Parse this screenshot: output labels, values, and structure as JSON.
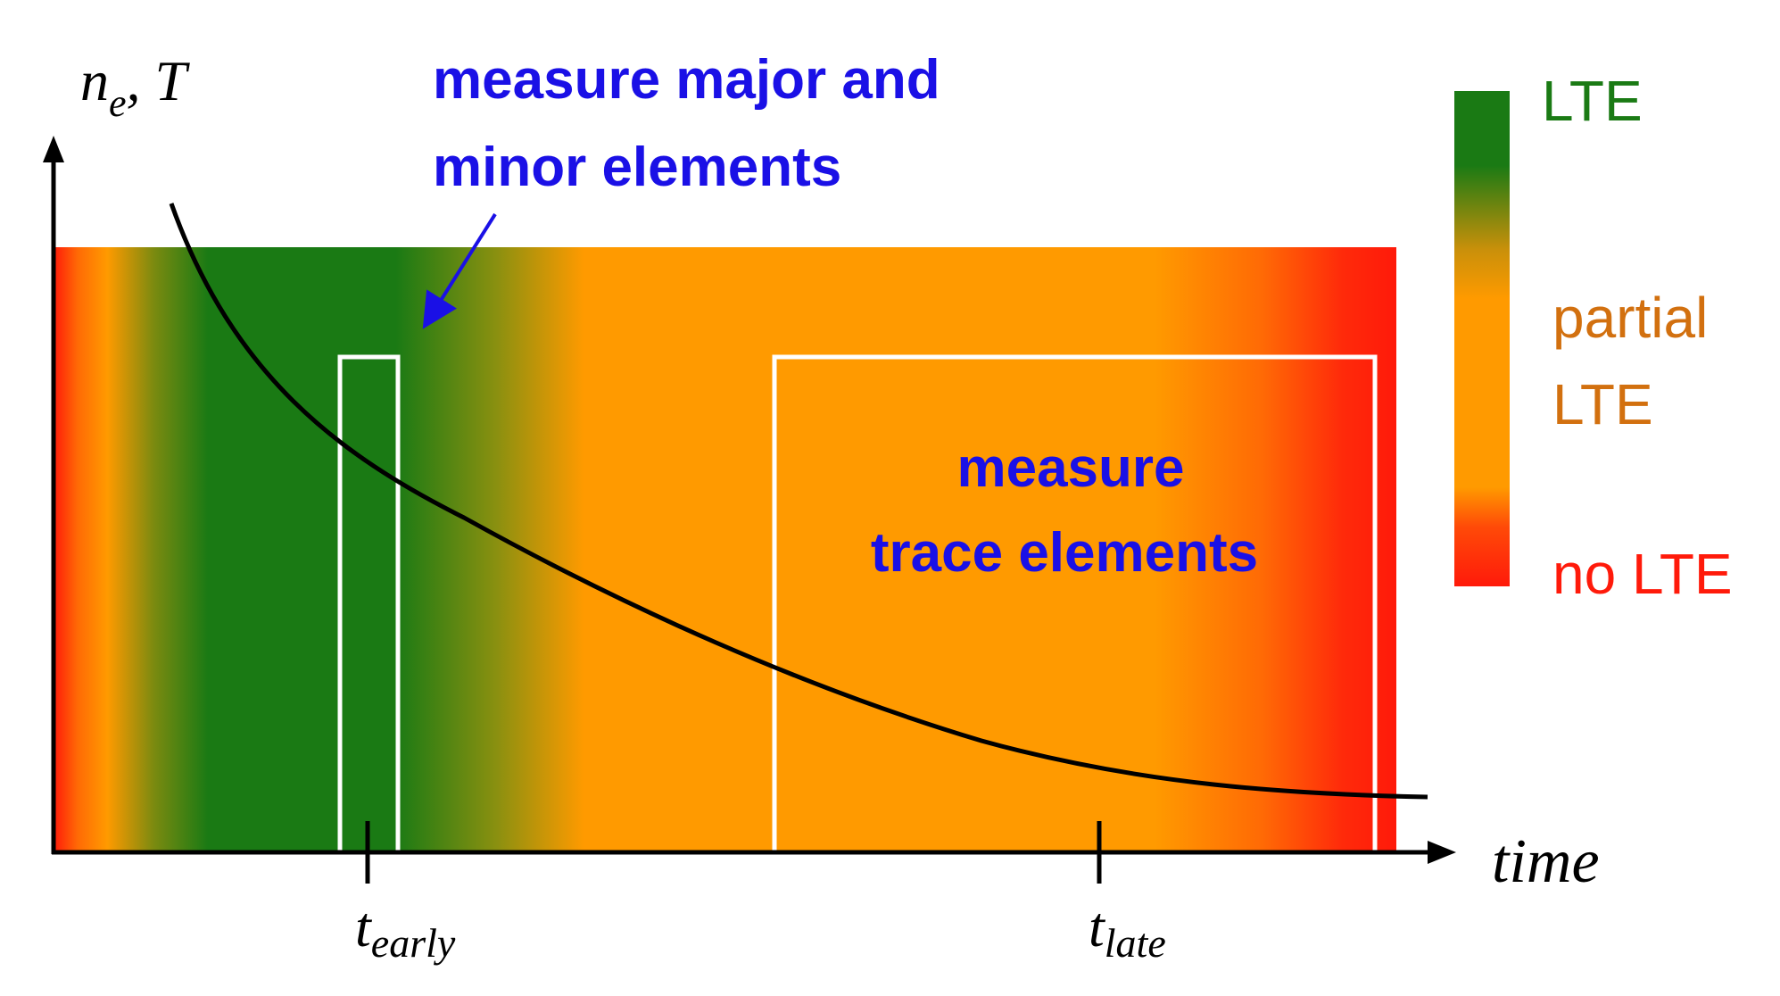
{
  "axes": {
    "y_label_main": "n",
    "y_label_sub": "e",
    "y_label_rest": ", T",
    "x_label": "time"
  },
  "ticks": [
    {
      "main": "t",
      "sub": "early"
    },
    {
      "main": "t",
      "sub": "late"
    }
  ],
  "annotations": {
    "early_line1": "measure major and",
    "early_line2": "minor elements",
    "late_line1": "measure",
    "late_line2": "trace elements"
  },
  "legend": {
    "lte": "LTE",
    "partial_line1": "partial",
    "partial_line2": "LTE",
    "no_lte": "no LTE"
  },
  "colors": {
    "lte": "#1a7a14",
    "partial": "#ff9a00",
    "no_lte": "#ff1a0a",
    "annotation": "#1a10e6",
    "partial_label": "#d2700f",
    "lte_label": "#1a7a14",
    "no_lte_label": "#ff1a0a"
  }
}
